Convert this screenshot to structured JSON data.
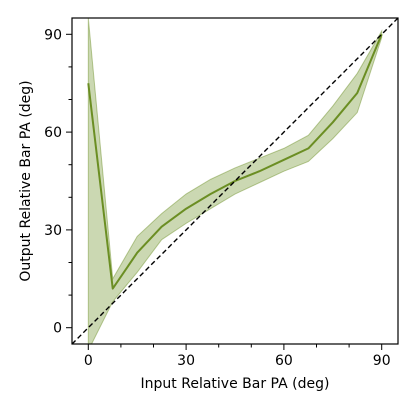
{
  "chart_data": {
    "type": "line",
    "title": "",
    "xlabel": "Input Relative Bar PA (deg)",
    "ylabel": "Output Relative Bar PA (deg)",
    "xlim": [
      -5,
      95
    ],
    "ylim": [
      -5,
      95
    ],
    "grid": false,
    "xticks": [
      0,
      30,
      60,
      90
    ],
    "yticks": [
      0,
      30,
      60,
      90
    ],
    "xtick_labels": [
      "0",
      "30",
      "60",
      "90"
    ],
    "ytick_labels": [
      "0",
      "30",
      "60",
      "90"
    ],
    "minor_tick_step": 10,
    "series": [
      {
        "x": [
          0,
          7.5,
          15,
          22.5,
          30,
          37.5,
          45,
          52.5,
          60,
          67.5,
          75,
          82.5,
          90
        ],
        "y": [
          75,
          12,
          23,
          31,
          36.5,
          41,
          45,
          48,
          51.5,
          55,
          63,
          72,
          90
        ],
        "lower": [
          -7,
          8,
          17,
          27,
          32,
          36.5,
          41,
          44.5,
          48,
          51,
          58,
          66,
          89
        ],
        "upper": [
          95,
          15,
          28,
          35,
          41,
          45.5,
          49,
          52,
          55,
          59,
          68,
          78,
          91
        ],
        "color": "#6b8e23",
        "band_color": "#6b8e23"
      }
    ],
    "reference_line": {
      "x": [
        -5,
        95
      ],
      "y": [
        -5,
        95
      ],
      "style": "dashed",
      "color": "#000000"
    }
  }
}
